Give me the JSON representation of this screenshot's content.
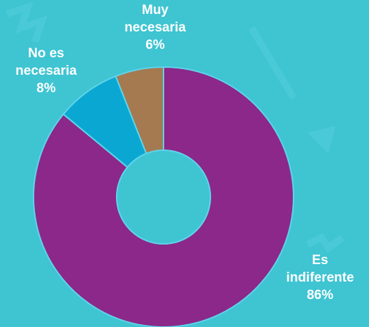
{
  "chart_data": {
    "type": "donut",
    "categories": [
      "Es indiferente",
      "No es necesaria",
      "Muy necesaria"
    ],
    "values": [
      86,
      8,
      6
    ],
    "value_labels": [
      "86%",
      "8%",
      "6%"
    ],
    "colors": [
      "#8b2889",
      "#0aa7d2",
      "#a57a50"
    ]
  }
}
